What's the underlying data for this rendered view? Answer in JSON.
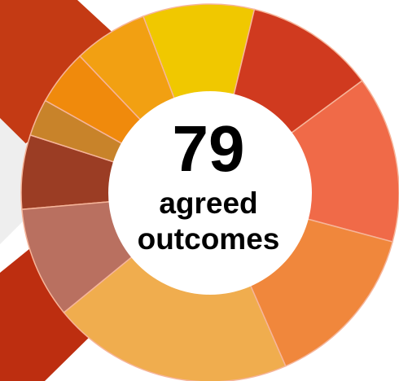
{
  "chart_data": {
    "type": "pie",
    "variant": "donut",
    "center_value": "79",
    "center_label_lines": [
      "agreed",
      "outcomes"
    ],
    "slices": [
      {
        "value": 4,
        "color": "#9b3d24"
      },
      {
        "value": 2,
        "color": "#c8832a"
      },
      {
        "value": 3,
        "color": "#f08a0c"
      },
      {
        "value": 4,
        "color": "#f2a012"
      },
      {
        "value": 6,
        "color": "#f0c800"
      },
      {
        "value": 7,
        "color": "#d03a1f"
      },
      {
        "value": 9,
        "color": "#f06a48"
      },
      {
        "value": 9,
        "color": "#f0873c"
      },
      {
        "value": 13,
        "color": "#f0ad4e"
      },
      {
        "value": 6,
        "color": "#b97060"
      }
    ],
    "slice_separator_color": "#f6b59a"
  },
  "background": {
    "top_band_color": "#c43a14",
    "bottom_band_color": "#bd2e10",
    "wedge_color": "#eeeeee",
    "center_fill": "#ffffff"
  }
}
